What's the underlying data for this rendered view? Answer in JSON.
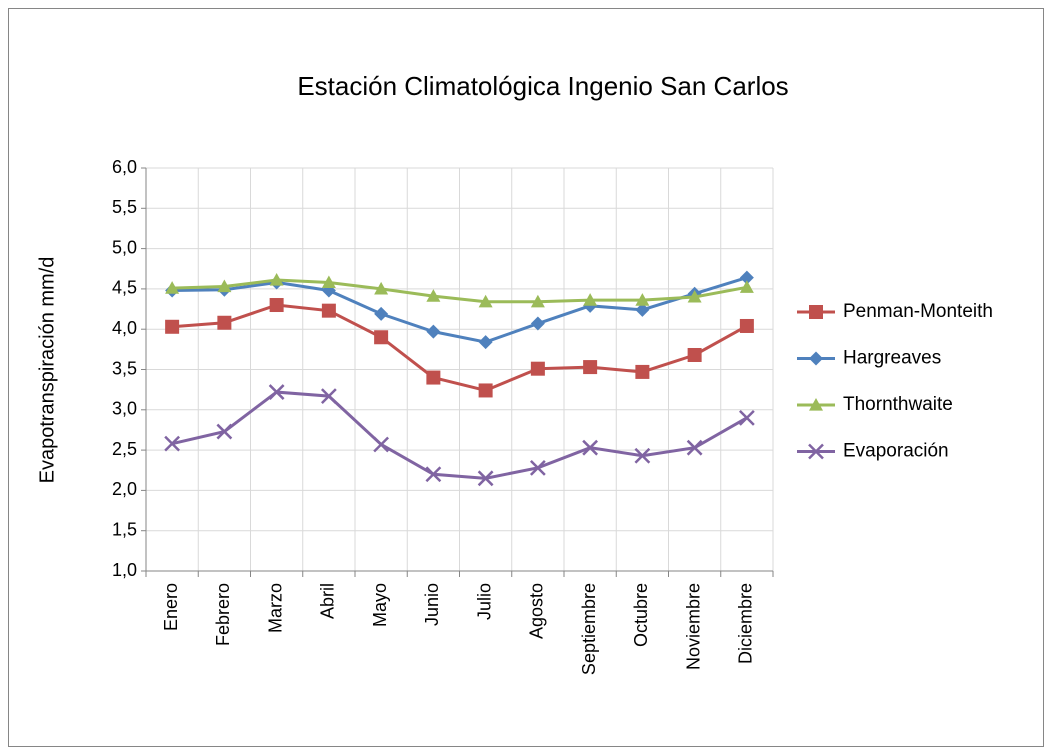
{
  "chart_data": {
    "type": "line",
    "title": "Estación Climatológica Ingenio San Carlos",
    "y_label": "Evapotranspiración  mm/d",
    "categories": [
      "Enero",
      "Febrero",
      "Marzo",
      "Abril",
      "Mayo",
      "Junio",
      "Julio",
      "Agosto",
      "Septiembre",
      "Octubre",
      "Noviembre",
      "Diciembre"
    ],
    "series": [
      {
        "name": "Penman-Monteith",
        "color": "#c0504d",
        "marker": "square",
        "values": [
          4.03,
          4.08,
          4.3,
          4.23,
          3.9,
          3.4,
          3.24,
          3.51,
          3.53,
          3.47,
          3.68,
          4.04
        ]
      },
      {
        "name": "Hargreaves",
        "color": "#4f81bd",
        "marker": "diamond",
        "values": [
          4.48,
          4.49,
          4.58,
          4.48,
          4.19,
          3.97,
          3.84,
          4.07,
          4.29,
          4.24,
          4.44,
          4.64
        ]
      },
      {
        "name": "Thornthwaite",
        "color": "#9bbb59",
        "marker": "triangle",
        "values": [
          4.51,
          4.53,
          4.61,
          4.58,
          4.5,
          4.41,
          4.34,
          4.34,
          4.36,
          4.36,
          4.4,
          4.52
        ]
      },
      {
        "name": "Evaporación",
        "color": "#8064a2",
        "marker": "x",
        "values": [
          2.58,
          2.73,
          3.22,
          3.17,
          2.57,
          2.2,
          2.15,
          2.28,
          2.53,
          2.43,
          2.53,
          2.9
        ]
      }
    ],
    "ylim": [
      1,
      6
    ],
    "yticks": [
      {
        "value": 1,
        "label": "1,0"
      },
      {
        "value": 1.5,
        "label": "1,5"
      },
      {
        "value": 2,
        "label": "2,0"
      },
      {
        "value": 2.5,
        "label": "2,5"
      },
      {
        "value": 3,
        "label": "3,0"
      },
      {
        "value": 3.5,
        "label": "3,5"
      },
      {
        "value": 4,
        "label": "4,0"
      },
      {
        "value": 4.5,
        "label": "4,5"
      },
      {
        "value": 5,
        "label": "5,0"
      },
      {
        "value": 5.5,
        "label": "5,5"
      },
      {
        "value": 6,
        "label": "6,0"
      }
    ],
    "grid": true,
    "legend": "right"
  }
}
